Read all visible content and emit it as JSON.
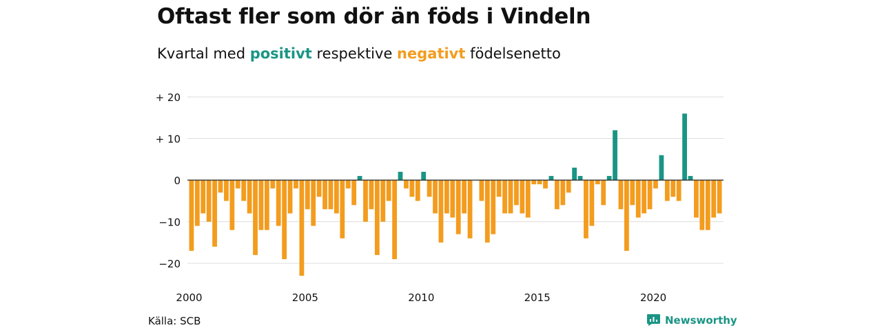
{
  "title": "Oftast fler som dör än föds i Vindeln",
  "subtitle": {
    "prefix": "Kvartal med ",
    "positive": "positivt",
    "middle": " respektive ",
    "negative": "negativt",
    "suffix": " födelsenetto"
  },
  "source": "Källa: SCB",
  "brand": {
    "name": "Newsworthy",
    "icon": "newsworthy-logo-icon"
  },
  "colors": {
    "positive": "#1a9585",
    "negative": "#f39c1e",
    "grid": "#dddddd",
    "zero": "#222222"
  },
  "chart_data": {
    "type": "bar",
    "x_start": 2000,
    "periods_per_year": 4,
    "values": [
      -17,
      -11,
      -8,
      -10,
      -16,
      -3,
      -5,
      -12,
      -2,
      -5,
      -8,
      -18,
      -12,
      -12,
      -2,
      -11,
      -19,
      -8,
      -2,
      -23,
      -7,
      -11,
      -4,
      -7,
      -7,
      -8,
      -14,
      -2,
      -6,
      1,
      -10,
      -7,
      -18,
      -10,
      -5,
      -19,
      2,
      -2,
      -4,
      -5,
      2,
      -4,
      -8,
      -15,
      -8,
      -9,
      -13,
      -8,
      -14,
      0,
      -5,
      -15,
      -13,
      -4,
      -8,
      -8,
      -6,
      -8,
      -9,
      -1,
      -1,
      -2,
      1,
      -7,
      -6,
      -3,
      3,
      1,
      -14,
      -11,
      -1,
      -6,
      1,
      12,
      -7,
      -17,
      -6,
      -9,
      -8,
      -7,
      -2,
      6,
      -5,
      -4,
      -5,
      16,
      1,
      -9,
      -12,
      -12,
      -9,
      -8
    ],
    "yticks": [
      {
        "value": 20,
        "label": "+ 20"
      },
      {
        "value": 10,
        "label": "+ 10"
      },
      {
        "value": 0,
        "label": "0"
      },
      {
        "value": -10,
        "label": "−10"
      },
      {
        "value": -20,
        "label": "−20"
      }
    ],
    "xticks": [
      {
        "value": 2000,
        "label": "2000"
      },
      {
        "value": 2005,
        "label": "2005"
      },
      {
        "value": 2010,
        "label": "2010"
      },
      {
        "value": 2015,
        "label": "2015"
      },
      {
        "value": 2020,
        "label": "2020"
      }
    ],
    "ylim": [
      -23,
      20
    ],
    "grid": true
  }
}
